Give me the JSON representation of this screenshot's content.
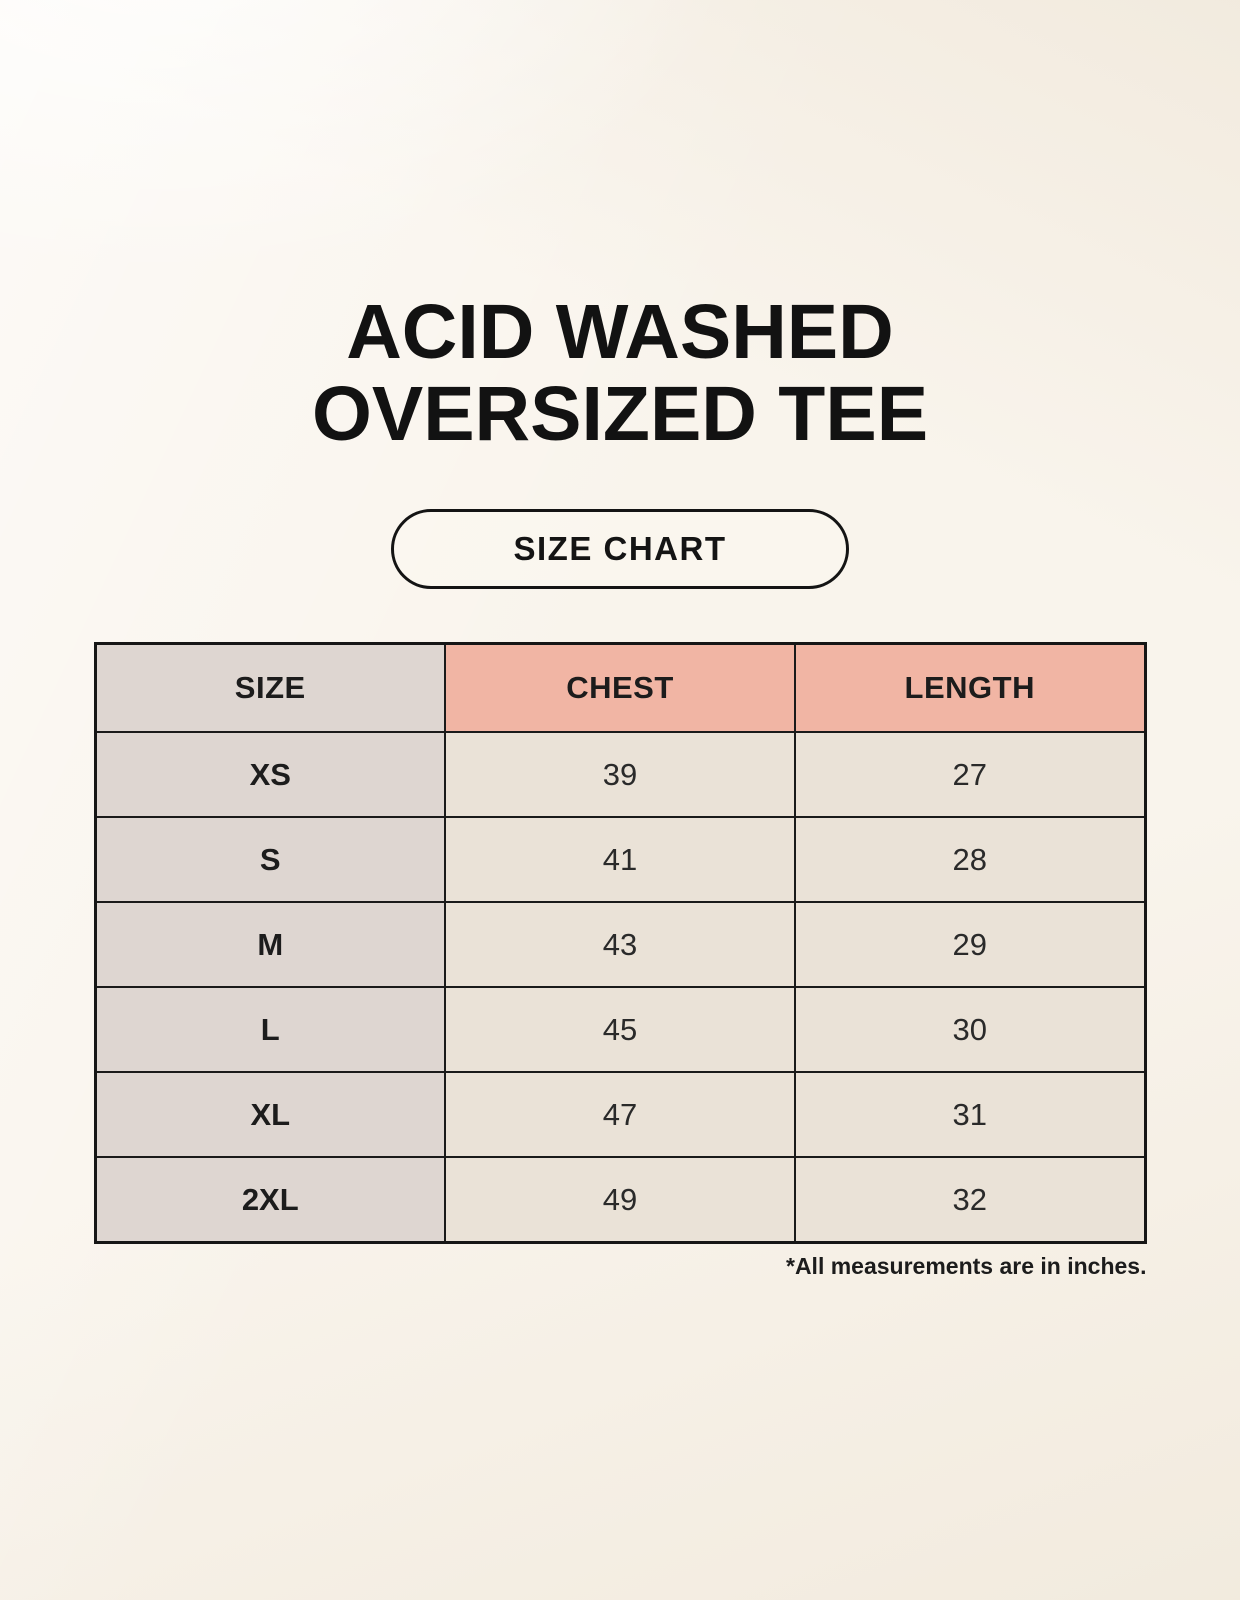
{
  "title": {
    "line1": "ACID WASHED",
    "line2": "OVERSIZED TEE"
  },
  "size_chart_button": {
    "label": "SIZE CHART"
  },
  "table": {
    "headers": {
      "size": "SIZE",
      "chest": "CHEST",
      "length": "LENGTH"
    },
    "rows": [
      {
        "size": "XS",
        "chest": "39",
        "length": "27"
      },
      {
        "size": "S",
        "chest": "41",
        "length": "28"
      },
      {
        "size": "M",
        "chest": "43",
        "length": "29"
      },
      {
        "size": "L",
        "chest": "45",
        "length": "30"
      },
      {
        "size": "XL",
        "chest": "47",
        "length": "31"
      },
      {
        "size": "2XL",
        "chest": "49",
        "length": "32"
      }
    ],
    "units_note": "*All measurements are in inches."
  },
  "colors": {
    "page_background": "#f9f4ec",
    "header_pink": "#f1b5a4",
    "size_column_gray": "#ded6d1",
    "data_cell_cream": "#eae2d7",
    "border_black": "#1a1a1a",
    "text_black": "#141414"
  }
}
